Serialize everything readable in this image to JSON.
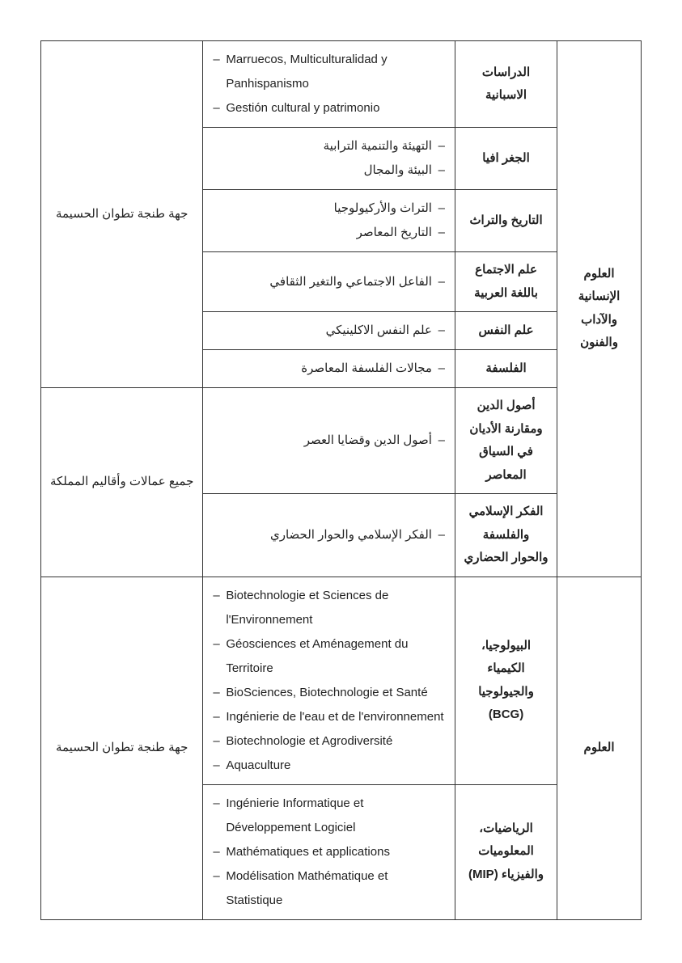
{
  "domain1": "العلوم الإنسانية والآداب والفنون",
  "domain2": "العلوم",
  "region1": "جهة طنجة تطوان الحسيمة",
  "region2": "جميع عمالات وأقاليم المملكة",
  "region3": "جهة طنجة تطوان الحسيمة",
  "s1": {
    "name": "الدراسات الاسبانية",
    "i1": "Marruecos, Multiculturalidad y Panhispanismo",
    "i2": "Gestión cultural y patrimonio"
  },
  "s2": {
    "name": "الجغر افيا",
    "i1": "التهيئة والتنمية الترابية",
    "i2": "البيئة والمجال"
  },
  "s3": {
    "name": "التاريخ والتراث",
    "i1": "التراث والأركيولوجيا",
    "i2": "التاريخ المعاصر"
  },
  "s4": {
    "name": "علم الاجتماع باللغة العربية",
    "i1": "الفاعل الاجتماعي والتغير الثقافي"
  },
  "s5": {
    "name": "علم النفس",
    "i1": "علم النفس الاكلينيكي"
  },
  "s6": {
    "name": "الفلسفة",
    "i1": "مجالات الفلسفة المعاصرة"
  },
  "s7": {
    "name": "أصول الدين ومقارنة الأديان في السياق المعاصر",
    "i1": "أصول الدين وقضايا العصر"
  },
  "s8": {
    "name": "الفكر الإسلامي والفلسفة والحوار الحضاري",
    "i1": "الفكر الإسلامي والحوار الحضاري"
  },
  "s9": {
    "name": "البيولوجيا، الكيمياء والجيولوجيا (BCG)",
    "i1": "Biotechnologie et Sciences de l'Environnement",
    "i2": "Géosciences et Aménagement du Territoire",
    "i3": "BioSciences, Biotechnologie et Santé",
    "i4": "Ingénierie de l'eau et de l'environnement",
    "i5": "Biotechnologie et Agrodiversité",
    "i6": "Aquaculture"
  },
  "s10": {
    "name": "الرياضيات، المعلوميات والفيزياء (MIP)",
    "i1": "Ingénierie Informatique et Développement Logiciel",
    "i2": "Mathématiques et applications",
    "i3": "Modélisation Mathématique et Statistique"
  }
}
